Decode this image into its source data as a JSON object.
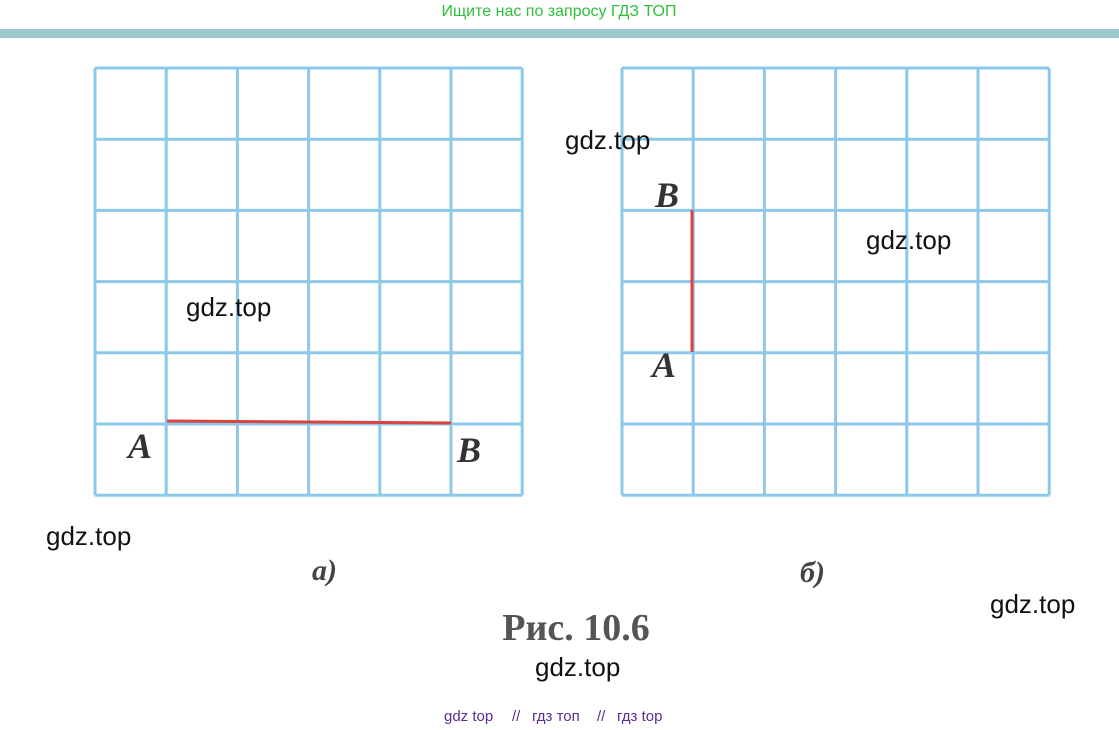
{
  "header": {
    "text": "Ищите нас по запросу ГДЗ ТОП"
  },
  "figure": {
    "left": {
      "point_a": "A",
      "point_b": "B",
      "caption": "а)"
    },
    "right": {
      "point_a": "A",
      "point_b": "B",
      "caption": "б)"
    },
    "caption": "Рис. 10.6"
  },
  "watermarks": [
    "gdz.top",
    "gdz.top",
    "gdz.top",
    "gdz.top",
    "gdz.top",
    "gdz.top"
  ],
  "footer": {
    "links": [
      "gdz top",
      "гдз топ",
      "гдз top"
    ],
    "separator": "//"
  }
}
